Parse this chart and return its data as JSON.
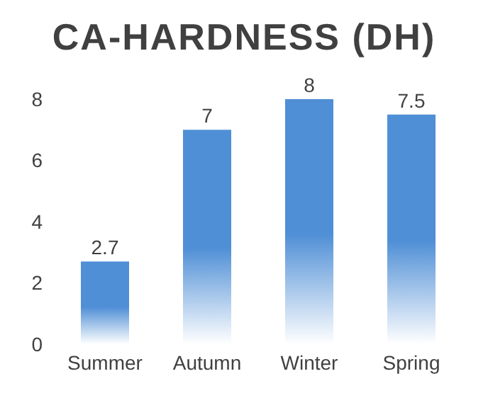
{
  "chart_data": {
    "type": "bar",
    "title": "CA-HARDNESS (DH)",
    "categories": [
      "Summer",
      "Autumn",
      "Winter",
      "Spring"
    ],
    "values": [
      2.7,
      7,
      8,
      7.5
    ],
    "color": "#4f8fd6",
    "ylim": [
      0,
      8
    ],
    "yticks": [
      0,
      2,
      4,
      6,
      8
    ],
    "grid": false,
    "data_labels": true
  }
}
